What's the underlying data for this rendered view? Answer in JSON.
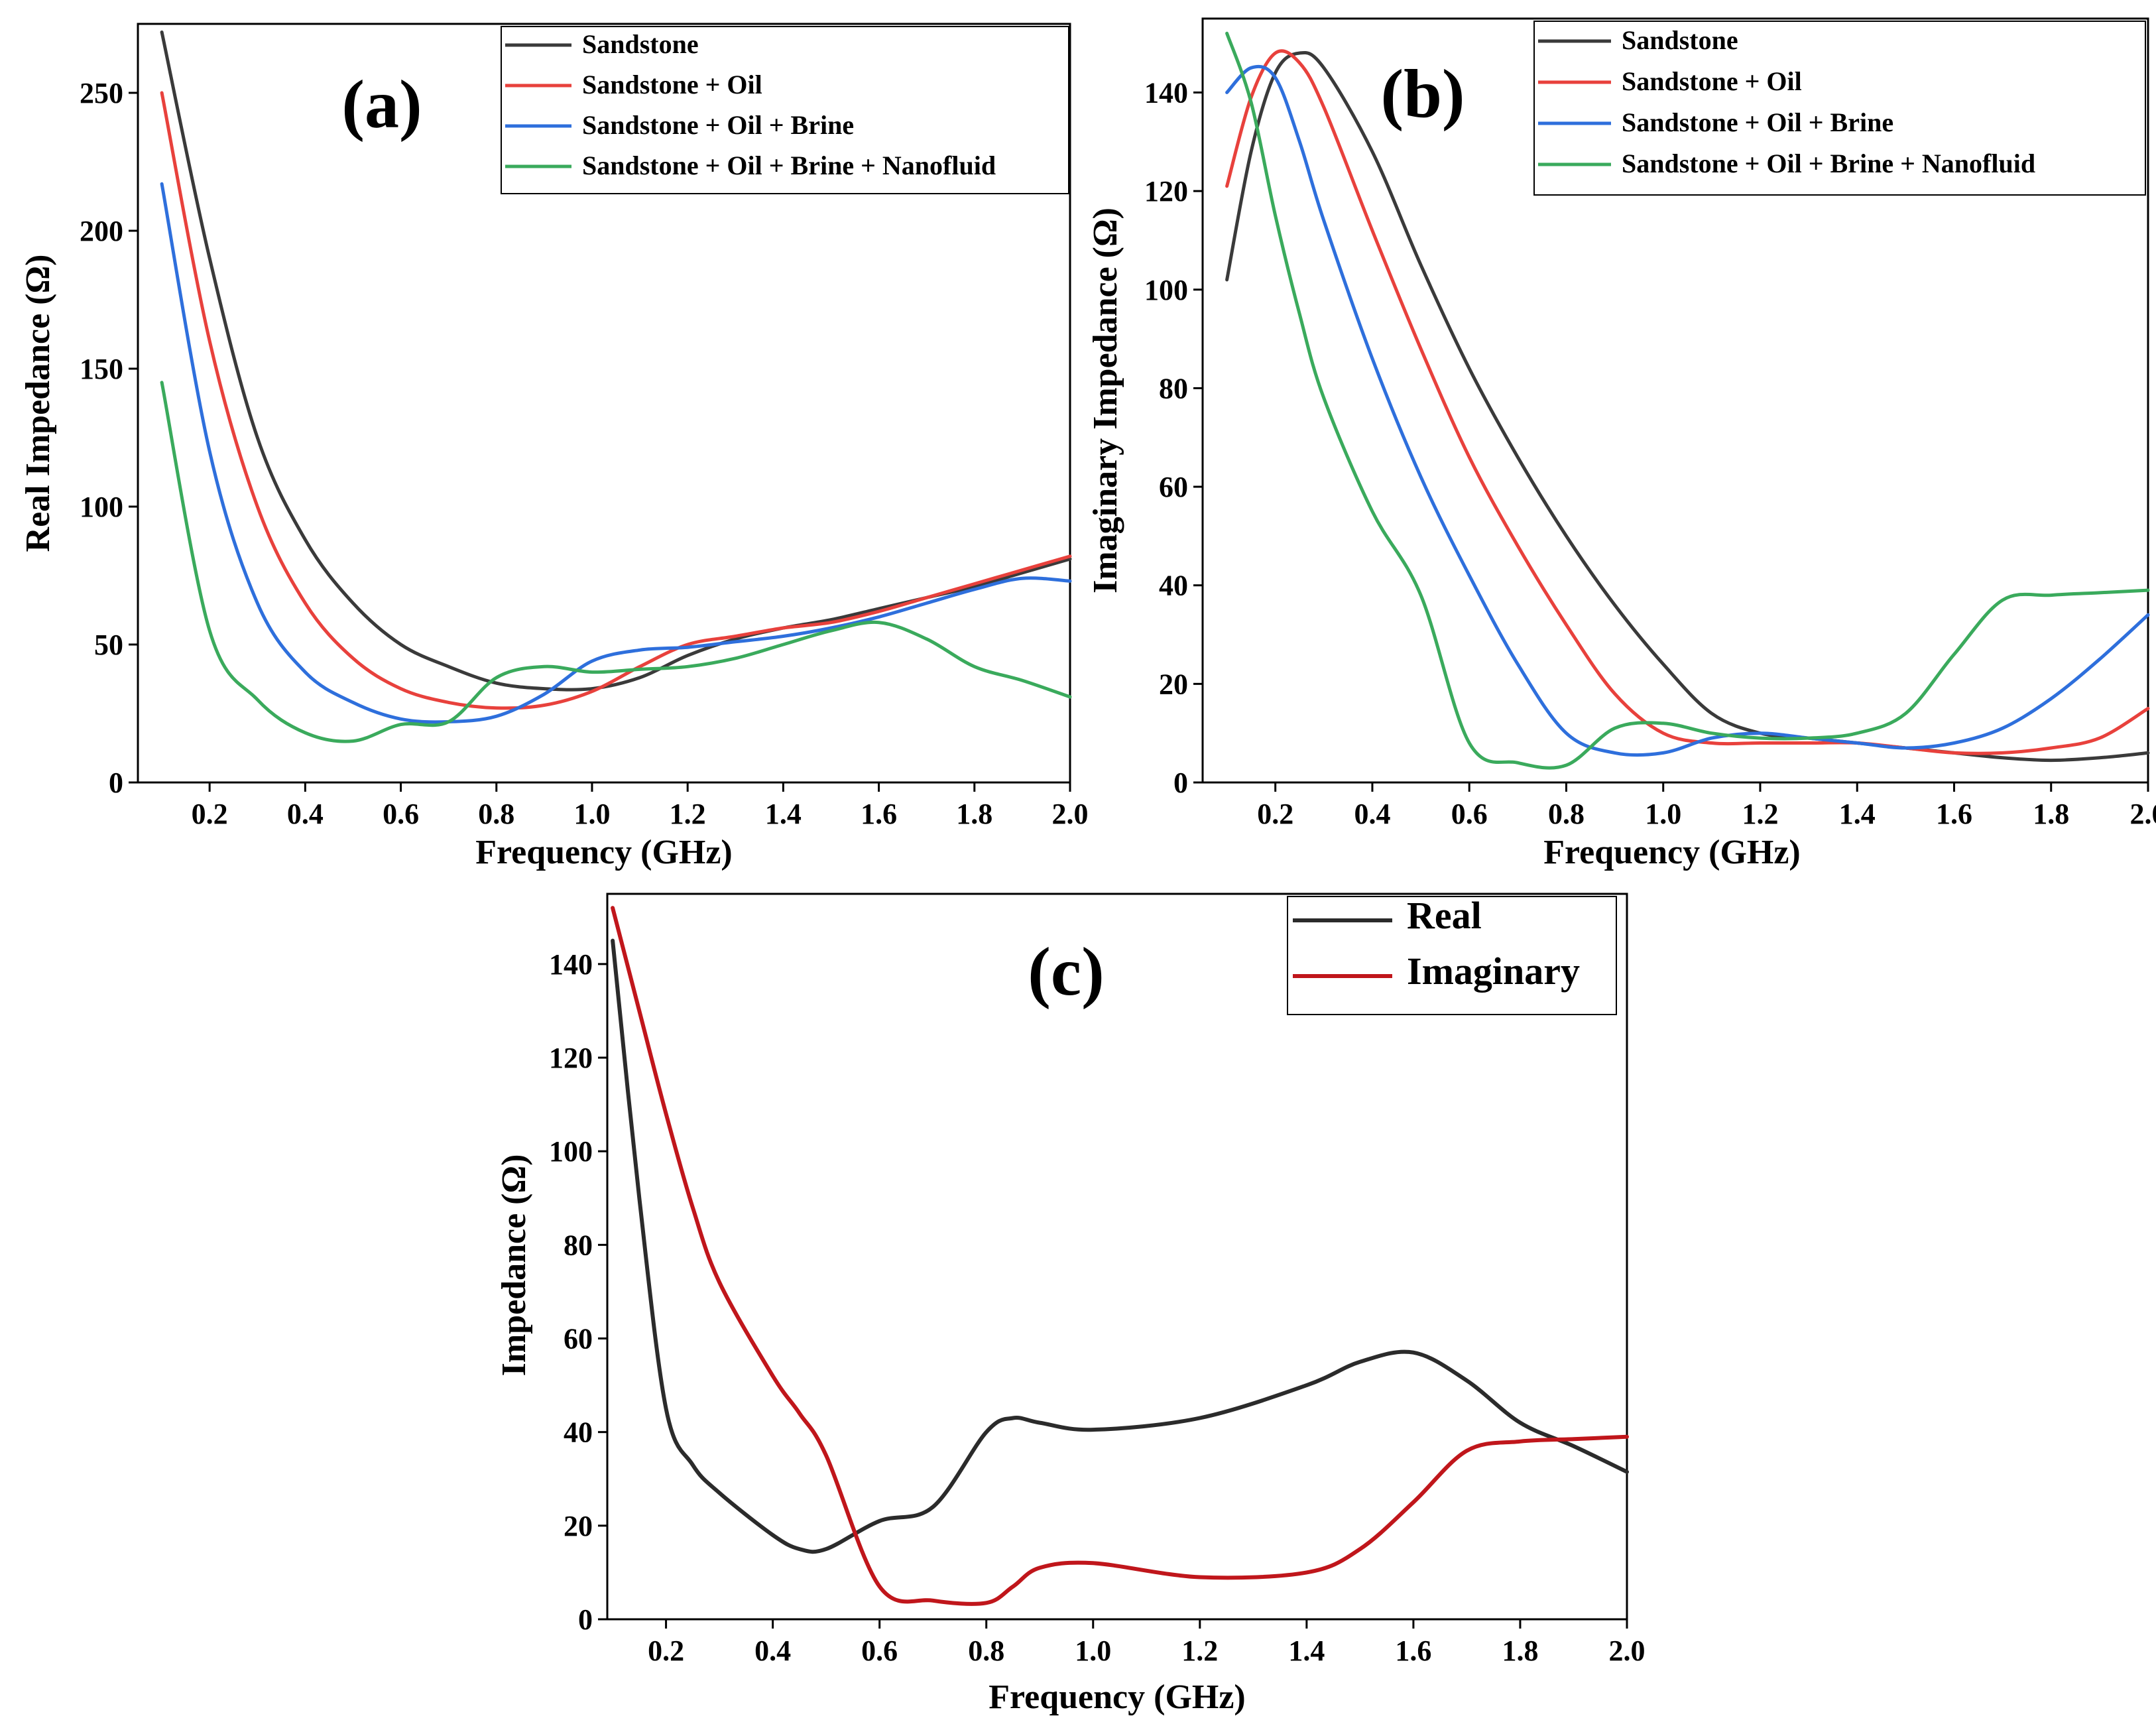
{
  "figure": {
    "panels": [
      "a",
      "b",
      "c"
    ]
  },
  "chart_data": [
    {
      "id": "a",
      "type": "line",
      "panel_label": "(a)",
      "title": "",
      "xlabel": "Frequency (GHz)",
      "ylabel": "Real Impedance (Ω)",
      "xlim": [
        0.05,
        2.0
      ],
      "ylim": [
        0,
        275
      ],
      "xticks": [
        0.2,
        0.4,
        0.6,
        0.8,
        1.0,
        1.2,
        1.4,
        1.6,
        1.8,
        2.0
      ],
      "xtick_labels": [
        "0.2",
        "0.4",
        "0.6",
        "0.8",
        "1.0",
        "1.2",
        "1.4",
        "1.6",
        "1.8",
        "2.0"
      ],
      "yticks": [
        0,
        50,
        100,
        150,
        200,
        250
      ],
      "ytick_labels": [
        "0",
        "50",
        "100",
        "150",
        "200",
        "250"
      ],
      "grid": false,
      "legend_position": "top-right",
      "x": [
        0.1,
        0.2,
        0.3,
        0.4,
        0.5,
        0.6,
        0.7,
        0.8,
        0.9,
        1.0,
        1.1,
        1.2,
        1.3,
        1.4,
        1.5,
        1.6,
        1.7,
        1.8,
        1.9,
        2.0
      ],
      "series": [
        {
          "name": "Sandstone",
          "color": "#3a3a3a",
          "values": [
            272,
            190,
            125,
            88,
            65,
            50,
            42,
            36,
            34,
            34,
            38,
            46,
            52,
            56,
            59,
            63,
            67,
            71,
            76,
            81
          ]
        },
        {
          "name": "Sandstone + Oil",
          "color": "#e8413c",
          "values": [
            250,
            160,
            100,
            65,
            45,
            34,
            29,
            27,
            28,
            33,
            42,
            50,
            53,
            56,
            58,
            62,
            67,
            72,
            77,
            82
          ]
        },
        {
          "name": "Sandstone + Oil + Brine",
          "color": "#2e6fdc",
          "values": [
            217,
            120,
            65,
            40,
            29,
            23,
            22,
            24,
            32,
            44,
            48,
            49,
            51,
            53,
            56,
            60,
            65,
            70,
            74,
            73
          ]
        },
        {
          "name": "Sandstone + Oil + Brine + Nanofluid",
          "color": "#3aaa5c",
          "values": [
            145,
            55,
            30,
            18,
            15,
            21,
            22,
            38,
            42,
            40,
            41,
            42,
            45,
            50,
            55,
            58,
            52,
            42,
            37,
            31
          ]
        }
      ]
    },
    {
      "id": "b",
      "type": "line",
      "panel_label": "(b)",
      "title": "",
      "xlabel": "Frequency (GHz)",
      "ylabel": "Imaginary Impedance (Ω)",
      "xlim": [
        0.05,
        2.0
      ],
      "ylim": [
        0,
        155
      ],
      "xticks": [
        0.2,
        0.4,
        0.6,
        0.8,
        1.0,
        1.2,
        1.4,
        1.6,
        1.8,
        2.0
      ],
      "xtick_labels": [
        "0.2",
        "0.4",
        "0.6",
        "0.8",
        "1.0",
        "1.2",
        "1.4",
        "1.6",
        "1.8",
        "2.0"
      ],
      "yticks": [
        0,
        20,
        40,
        60,
        80,
        100,
        120,
        140
      ],
      "ytick_labels": [
        "0",
        "20",
        "40",
        "60",
        "80",
        "100",
        "120",
        "140"
      ],
      "grid": false,
      "legend_position": "top-right",
      "x": [
        0.1,
        0.15,
        0.2,
        0.25,
        0.3,
        0.4,
        0.5,
        0.6,
        0.7,
        0.8,
        0.9,
        1.0,
        1.1,
        1.2,
        1.3,
        1.4,
        1.5,
        1.6,
        1.7,
        1.8,
        1.9,
        2.0
      ],
      "series": [
        {
          "name": "Sandstone",
          "color": "#3a3a3a",
          "values": [
            102,
            128,
            144,
            148,
            145,
            128,
            105,
            84,
            66,
            50,
            36,
            24,
            14,
            10,
            9,
            8,
            7,
            6,
            5,
            4.5,
            5,
            6
          ]
        },
        {
          "name": "Sandstone + Oil",
          "color": "#e8413c",
          "values": [
            121,
            139,
            148,
            146,
            137,
            112,
            88,
            66,
            48,
            32,
            18,
            10,
            8,
            8,
            8,
            8,
            7,
            6,
            6,
            7,
            9,
            15
          ]
        },
        {
          "name": "Sandstone + Oil + Brine",
          "color": "#2e6fdc",
          "values": [
            140,
            145,
            143,
            130,
            114,
            86,
            62,
            42,
            24,
            10,
            6,
            6,
            9,
            10,
            9,
            8,
            7,
            8,
            11,
            17,
            25,
            34
          ]
        },
        {
          "name": "Sandstone + Oil + Brine + Nanofluid",
          "color": "#3aaa5c",
          "values": [
            152,
            138,
            115,
            95,
            78,
            55,
            38,
            8,
            4,
            3.5,
            11,
            12,
            10,
            9,
            9,
            10,
            14,
            26,
            37,
            38,
            38.5,
            39
          ]
        }
      ]
    },
    {
      "id": "c",
      "type": "line",
      "panel_label": "(c)",
      "title": "",
      "xlabel": "Frequency (GHz)",
      "ylabel": "Impedance (Ω)",
      "xlim": [
        0.09,
        2.0
      ],
      "ylim": [
        0,
        155
      ],
      "xticks": [
        0.2,
        0.4,
        0.6,
        0.8,
        1.0,
        1.2,
        1.4,
        1.6,
        1.8,
        2.0
      ],
      "xtick_labels": [
        "0.2",
        "0.4",
        "0.6",
        "0.8",
        "1.0",
        "1.2",
        "1.4",
        "1.6",
        "1.8",
        "2.0"
      ],
      "yticks": [
        0,
        20,
        40,
        60,
        80,
        100,
        120,
        140
      ],
      "ytick_labels": [
        "0",
        "20",
        "40",
        "60",
        "80",
        "100",
        "120",
        "140"
      ],
      "grid": false,
      "legend_position": "top-right",
      "x": [
        0.1,
        0.15,
        0.2,
        0.25,
        0.3,
        0.4,
        0.45,
        0.5,
        0.6,
        0.7,
        0.8,
        0.85,
        0.9,
        1.0,
        1.2,
        1.4,
        1.5,
        1.6,
        1.7,
        1.8,
        1.9,
        2.0
      ],
      "series": [
        {
          "name": "Real",
          "color": "#2b2b2b",
          "values": [
            145,
            90,
            45,
            33,
            27,
            18,
            15,
            15,
            21,
            24,
            40,
            43,
            42,
            40.5,
            43,
            50,
            55,
            57,
            51,
            42,
            37,
            31.5
          ]
        },
        {
          "name": "Imaginary",
          "color": "#c0161b",
          "values": [
            152,
            130,
            108,
            88,
            72,
            52,
            44,
            35,
            7,
            4,
            3.5,
            7,
            11,
            12,
            9,
            10,
            15,
            25,
            36,
            38,
            38.5,
            39
          ]
        }
      ]
    }
  ]
}
